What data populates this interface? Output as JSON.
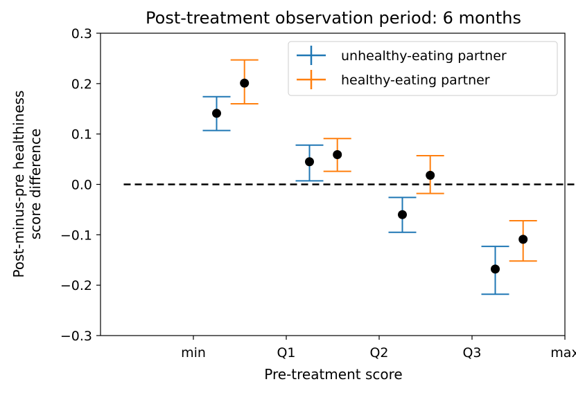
{
  "chart_data": {
    "type": "errorbar",
    "title": "Post-treatment observation period: 6 months",
    "xlabel": "Pre-treatment score",
    "ylabel_lines": [
      "Post-minus-pre healthiness",
      "score difference"
    ],
    "ylim": [
      -0.3,
      0.3
    ],
    "yticks": [
      0.3,
      0.2,
      0.1,
      0.0,
      -0.1,
      -0.2,
      -0.3
    ],
    "ytick_labels": [
      "0.3",
      "0.2",
      "0.1",
      "0.0",
      "−0.1",
      "−0.2",
      "−0.3"
    ],
    "xlim": [
      -0.5,
      4.5
    ],
    "xticks": [
      0.5,
      1.5,
      2.5,
      3.5,
      4.5
    ],
    "xtick_labels": [
      "min",
      "Q1",
      "Q2",
      "Q3",
      "max"
    ],
    "reference_line": {
      "y": 0.0,
      "x_from": -0.25,
      "x_to": 4.75,
      "style": "dashed",
      "color": "#000000"
    },
    "legend_position": "top-right",
    "series": [
      {
        "name": "unhealthy-eating partner",
        "color": "#1f77b4",
        "x": [
          0.75,
          1.75,
          2.75,
          3.75
        ],
        "y": [
          0.141,
          0.045,
          -0.06,
          -0.168
        ],
        "lower": [
          0.107,
          0.007,
          -0.095,
          -0.218
        ],
        "upper": [
          0.174,
          0.078,
          -0.026,
          -0.123
        ]
      },
      {
        "name": "healthy-eating partner",
        "color": "#ff7f0e",
        "x": [
          1.05,
          2.05,
          3.05,
          4.05
        ],
        "y": [
          0.201,
          0.059,
          0.018,
          -0.109
        ],
        "lower": [
          0.16,
          0.026,
          -0.018,
          -0.152
        ],
        "upper": [
          0.247,
          0.091,
          0.057,
          -0.072
        ]
      }
    ]
  }
}
